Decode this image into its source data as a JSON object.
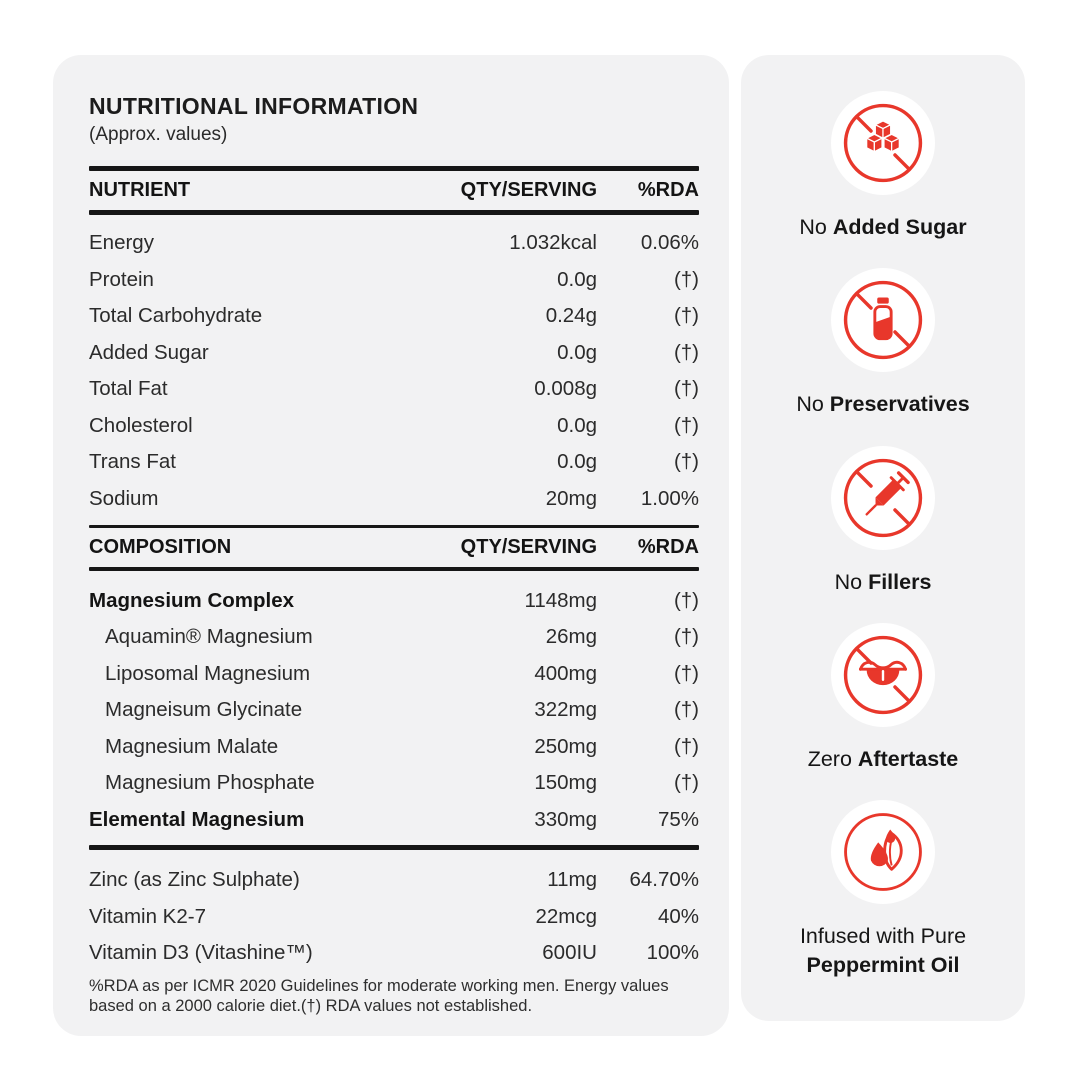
{
  "theme": {
    "accent_red": "#e8372b",
    "panel_bg": "#f2f2f3"
  },
  "nutrition": {
    "title": "NUTRITIONAL INFORMATION",
    "subtitle": "(Approx. values)",
    "nutrient_header": {
      "col1": "NUTRIENT",
      "col2": "QTY/SERVING",
      "col3": "%RDA"
    },
    "nutrient_rows": [
      {
        "label": "Energy",
        "qty": "1.032kcal",
        "rda": "0.06%"
      },
      {
        "label": "Protein",
        "qty": "0.0g",
        "rda": "(†)"
      },
      {
        "label": "Total Carbohydrate",
        "qty": "0.24g",
        "rda": "(†)"
      },
      {
        "label": "Added Sugar",
        "qty": "0.0g",
        "rda": "(†)"
      },
      {
        "label": "Total Fat",
        "qty": "0.008g",
        "rda": "(†)"
      },
      {
        "label": "Cholesterol",
        "qty": "0.0g",
        "rda": "(†)"
      },
      {
        "label": "Trans Fat",
        "qty": "0.0g",
        "rda": "(†)"
      },
      {
        "label": "Sodium",
        "qty": "20mg",
        "rda": "1.00%"
      }
    ],
    "composition_header": {
      "col1": "COMPOSITION",
      "col2": "QTY/SERVING",
      "col3": "%RDA"
    },
    "composition_rows": [
      {
        "label": "Magnesium Complex",
        "qty": "1148mg",
        "rda": "(†)",
        "bold": true
      },
      {
        "label": "Aquamin® Magnesium",
        "qty": "26mg",
        "rda": "(†)",
        "indent": true
      },
      {
        "label": "Liposomal Magnesium",
        "qty": "400mg",
        "rda": "(†)",
        "indent": true
      },
      {
        "label": "Magneisum Glycinate",
        "qty": "322mg",
        "rda": "(†)",
        "indent": true
      },
      {
        "label": "Magnesium Malate",
        "qty": "250mg",
        "rda": "(†)",
        "indent": true
      },
      {
        "label": "Magnesium Phosphate",
        "qty": "150mg",
        "rda": "(†)",
        "indent": true
      },
      {
        "label": "Elemental Magnesium",
        "qty": "330mg",
        "rda": "75%",
        "bold": true
      }
    ],
    "mineral_rows": [
      {
        "label": "Zinc (as Zinc Sulphate)",
        "qty": "11mg",
        "rda": "64.70%"
      },
      {
        "label": "Vitamin K2-7",
        "qty": "22mcg",
        "rda": "40%"
      },
      {
        "label": "Vitamin D3 (Vitashine™)",
        "qty": "600IU",
        "rda": "100%"
      }
    ],
    "footnote": "%RDA as per ICMR 2020 Guidelines for moderate working men. Energy values based on a 2000 calorie diet.(†) RDA values not established."
  },
  "benefits": {
    "items": [
      {
        "icon": "no-added-sugar-icon",
        "prefix": "No",
        "bold": "Added Sugar",
        "stacked": false
      },
      {
        "icon": "no-preservatives-icon",
        "prefix": "No",
        "bold": "Preservatives",
        "stacked": false
      },
      {
        "icon": "no-fillers-icon",
        "prefix": "No",
        "bold": "Fillers",
        "stacked": false
      },
      {
        "icon": "zero-aftertaste-icon",
        "prefix": "Zero",
        "bold": "Aftertaste",
        "stacked": false
      },
      {
        "icon": "peppermint-oil-icon",
        "prefix": "Infused with Pure",
        "bold": "Peppermint Oil",
        "stacked": true
      }
    ]
  }
}
